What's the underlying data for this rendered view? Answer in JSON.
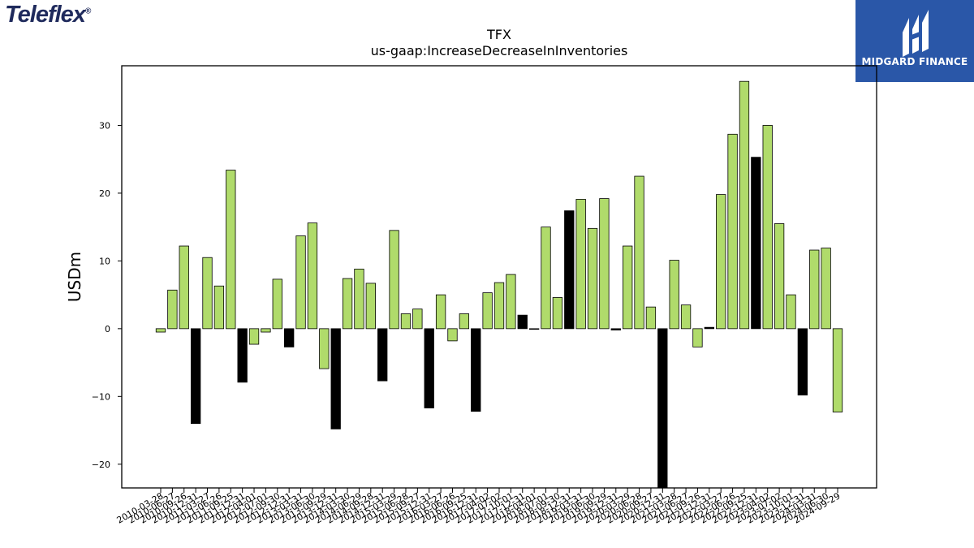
{
  "logos": {
    "left": "Teleflex",
    "right": "MIDGARD FINANCE"
  },
  "colors": {
    "positive": "#b0db6b",
    "negative": "#000000",
    "bar_edge": "#000000",
    "brand_right_bg": "#2a57a8",
    "brand_left": "#1f2a5c"
  },
  "chart_data": {
    "type": "bar",
    "title": "TFX",
    "subtitle": "us-gaap:IncreaseDecreaseInInventories",
    "xlabel": "",
    "ylabel": "USDm",
    "ylim": [
      -23.5,
      38.8
    ],
    "yticks": [
      -20,
      -10,
      0,
      10,
      20,
      30
    ],
    "grid": false,
    "categories": [
      "2010-03-28",
      "2010-06-27",
      "2010-09-26",
      "2010-12-31",
      "2011-03-27",
      "2011-06-26",
      "2011-09-25",
      "2011-12-31",
      "2012-04-01",
      "2012-07-01",
      "2012-09-30",
      "2012-12-31",
      "2013-03-31",
      "2013-06-30",
      "2013-09-29",
      "2013-12-31",
      "2014-03-30",
      "2014-06-29",
      "2014-09-28",
      "2014-12-31",
      "2015-03-29",
      "2015-06-28",
      "2015-09-27",
      "2015-12-31",
      "2016-03-27",
      "2016-06-26",
      "2016-09-25",
      "2016-12-31",
      "2017-04-02",
      "2017-07-02",
      "2017-10-01",
      "2017-12-31",
      "2018-04-01",
      "2018-07-01",
      "2018-09-30",
      "2018-12-31",
      "2019-03-31",
      "2019-06-30",
      "2019-09-29",
      "2019-12-31",
      "2020-03-29",
      "2020-06-28",
      "2020-09-27",
      "2020-12-31",
      "2021-03-28",
      "2021-06-27",
      "2021-09-26",
      "2021-12-31",
      "2022-03-27",
      "2022-06-26",
      "2022-09-25",
      "2022-12-31",
      "2023-04-02",
      "2023-07-02",
      "2023-10-01",
      "2023-12-31",
      "2024-03-31",
      "2024-06-30",
      "2024-09-29"
    ],
    "tick_labels": [
      "2010-03-28",
      "2010-06-27",
      "2010-09-26",
      "2010-12-31",
      "2011-03-27",
      "2011-06-26",
      "2011-09-25",
      "2011-12-31",
      "2012-04-01",
      "2012-07-01",
      "2012-09-30",
      "2012-12-31",
      "2013-03-31",
      "2013-06-30",
      "2013-09-29",
      "2013-12-31",
      "2014-03-30",
      "2014-06-29",
      "2014-09-28",
      "2014-12-31",
      "2015-03-29",
      "2015-06-28",
      "2015-09-27",
      "2015-12-31",
      "2016-03-27",
      "2016-06-26",
      "2016-09-25",
      "2016-12-31",
      "2017-04-02",
      "2017-07-02",
      "2017-10-01",
      "2017-12-31",
      "2018-04-01",
      "2018-07-01",
      "2018-09-30",
      "2018-12-31",
      "2019-03-31",
      "2019-06-30",
      "2019-09-29",
      "2019-12-31",
      "2020-03-29",
      "2020-06-28",
      "2020-09-27",
      "2020-12-31",
      "2021-03-28",
      "2021-06-27",
      "2021-09-26",
      "2021-12-31",
      "2022-03-27",
      "2022-06-26",
      "2022-09-25",
      "2022-12-31",
      "2023-04-02",
      "2023-07-02",
      "2023-10-01",
      "2023-12-31",
      "2024-03-31",
      "2024-06-30",
      "2024-09-29"
    ],
    "values": [
      -0.5,
      5.7,
      12.2,
      -14.0,
      10.5,
      6.3,
      23.4,
      -7.9,
      -2.3,
      -0.5,
      7.3,
      -2.7,
      13.7,
      15.6,
      -5.9,
      -14.8,
      7.4,
      8.8,
      6.7,
      -7.7,
      14.5,
      2.2,
      2.9,
      -11.7,
      5.0,
      -1.8,
      2.2,
      -12.2,
      5.3,
      6.8,
      8.0,
      2.0,
      0.0,
      15.0,
      4.6,
      17.4,
      19.1,
      14.8,
      19.2,
      -0.2,
      12.2,
      22.5,
      3.2,
      -23.5,
      10.1,
      3.5,
      -2.7,
      0.2,
      19.8,
      28.7,
      36.5,
      25.3,
      30.0,
      15.5,
      5.0,
      -9.8,
      11.6,
      11.9,
      -12.3
    ],
    "bar_colors": [
      "green",
      "green",
      "green",
      "black",
      "green",
      "green",
      "green",
      "black",
      "green",
      "green",
      "green",
      "black",
      "green",
      "green",
      "green",
      "black",
      "green",
      "green",
      "green",
      "black",
      "green",
      "green",
      "green",
      "black",
      "green",
      "green",
      "green",
      "black",
      "green",
      "green",
      "green",
      "black",
      "green",
      "green",
      "green",
      "black",
      "green",
      "green",
      "green",
      "black",
      "green",
      "green",
      "green",
      "black",
      "green",
      "green",
      "green",
      "black",
      "green",
      "green",
      "green",
      "black",
      "green",
      "green",
      "green",
      "black",
      "green",
      "green",
      "green"
    ]
  }
}
